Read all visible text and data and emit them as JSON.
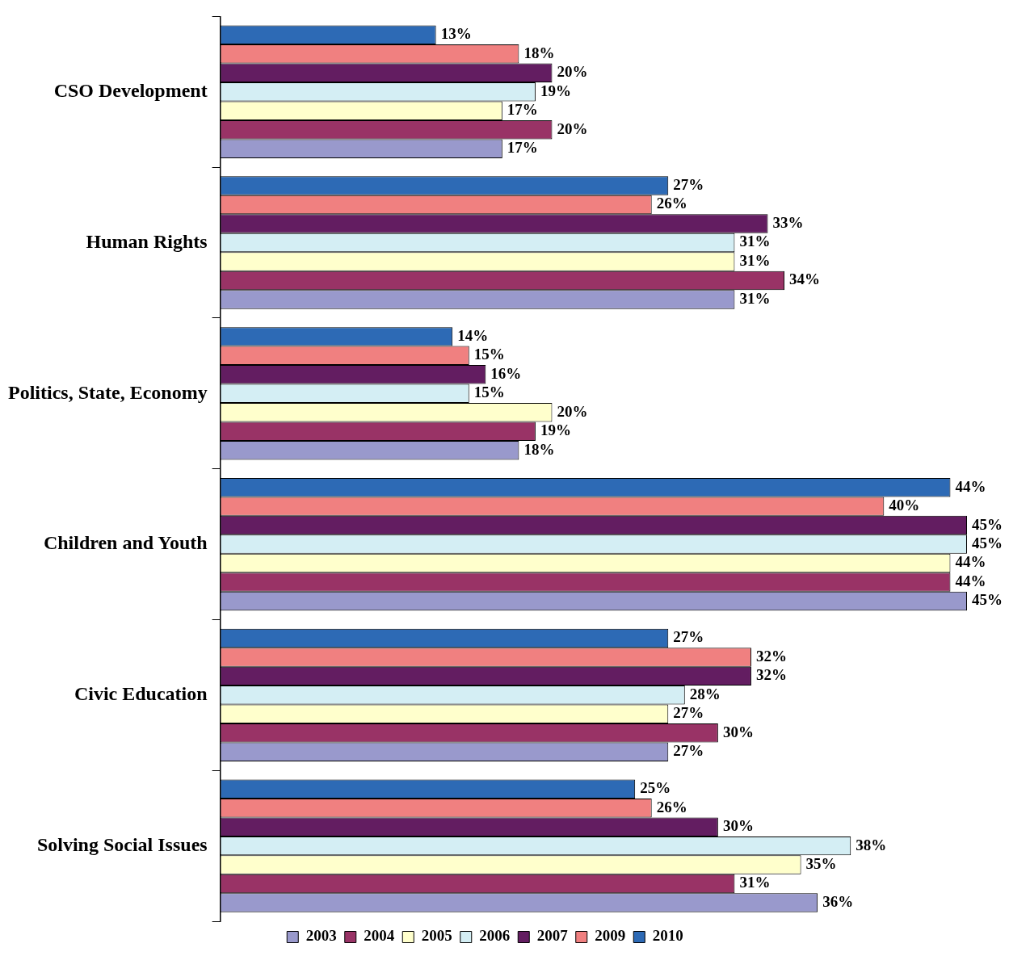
{
  "chart_data": {
    "type": "bar",
    "orientation": "horizontal",
    "legend": "bottom",
    "categories": [
      "CSO Development",
      "Human Rights",
      "Politics, State, Economy",
      "Children and Youth",
      "Civic Education",
      "Solving Social Issues"
    ],
    "series": [
      {
        "name": "2003",
        "color": "#9999cc",
        "values": [
          17,
          31,
          18,
          45,
          27,
          36
        ],
        "value_labels": [
          "17%",
          "31%",
          "18%",
          "45%",
          "27%",
          "36%"
        ]
      },
      {
        "name": "2004",
        "color": "#993366",
        "values": [
          20,
          34,
          19,
          44,
          30,
          31
        ],
        "value_labels": [
          "20%",
          "34%",
          "19%",
          "44%",
          "30%",
          "31%"
        ]
      },
      {
        "name": "2005",
        "color": "#ffffcc",
        "values": [
          17,
          31,
          20,
          44,
          27,
          35
        ],
        "value_labels": [
          "17%",
          "31%",
          "20%",
          "44%",
          "27%",
          "35%"
        ]
      },
      {
        "name": "2006",
        "color": "#d4eef4",
        "values": [
          19,
          31,
          15,
          45,
          28,
          38
        ],
        "value_labels": [
          "19%",
          "31%",
          "15%",
          "45%",
          "28%",
          "38%"
        ]
      },
      {
        "name": "2007",
        "color": "#631d61",
        "values": [
          20,
          33,
          16,
          45,
          32,
          30
        ],
        "value_labels": [
          "20%",
          "33%",
          "16%",
          "45%",
          "32%",
          "30%"
        ]
      },
      {
        "name": "2009",
        "color": "#f08080",
        "values": [
          18,
          26,
          15,
          40,
          32,
          26
        ],
        "value_labels": [
          "18%",
          "26%",
          "15%",
          "40%",
          "32%",
          "26%"
        ]
      },
      {
        "name": "2010",
        "color": "#2d6ab5",
        "values": [
          13,
          27,
          14,
          44,
          27,
          25
        ],
        "value_labels": [
          "13%",
          "27%",
          "14%",
          "44%",
          "27%",
          "25%"
        ]
      }
    ]
  }
}
